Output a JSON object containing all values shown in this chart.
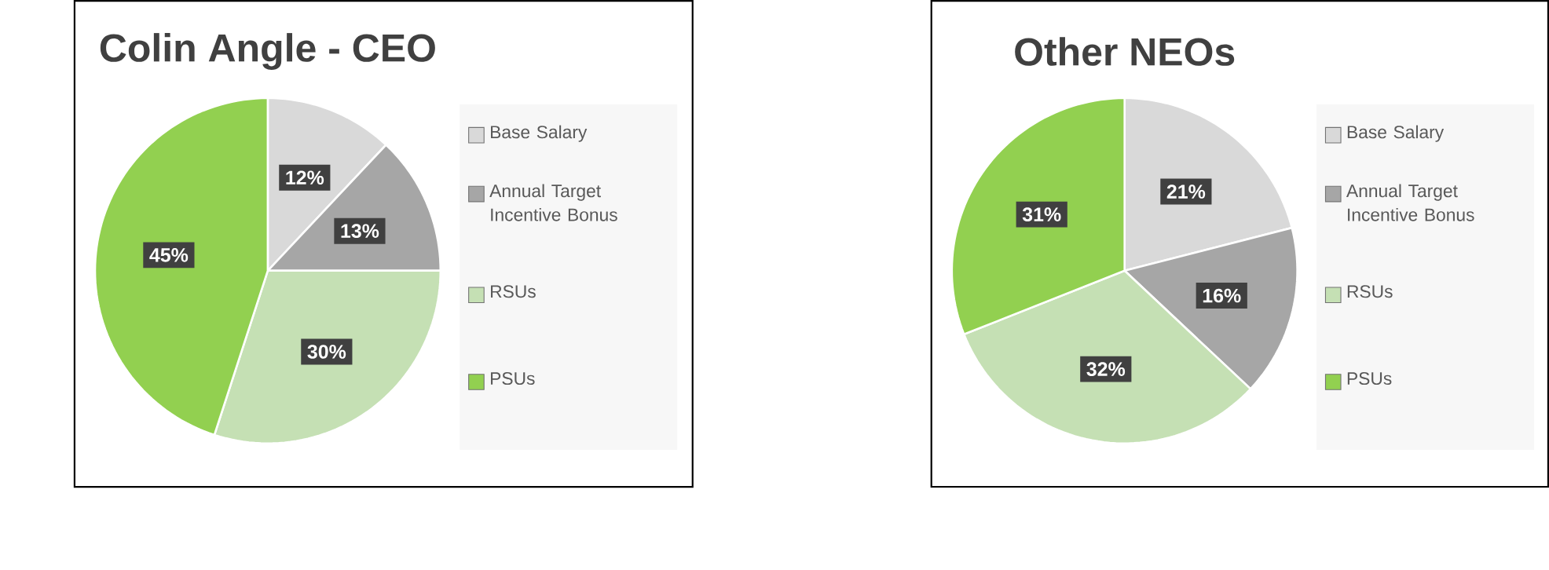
{
  "chart_data": [
    {
      "type": "pie",
      "title": "Colin Angle - CEO",
      "categories": [
        "Base Salary",
        "Annual Target Incentive Bonus",
        "RSUs",
        "PSUs"
      ],
      "values": [
        12,
        13,
        30,
        45
      ],
      "value_labels": [
        "12%",
        "13%",
        "30%",
        "45%"
      ],
      "colors": [
        "#d9d9d9",
        "#a6a6a6",
        "#c5e0b4",
        "#92d050"
      ],
      "legend": "right"
    },
    {
      "type": "pie",
      "title": "Other NEOs",
      "categories": [
        "Base Salary",
        "Annual Target Incentive Bonus",
        "RSUs",
        "PSUs"
      ],
      "values": [
        21,
        16,
        32,
        31
      ],
      "value_labels": [
        "21%",
        "16%",
        "32%",
        "31%"
      ],
      "colors": [
        "#d9d9d9",
        "#a6a6a6",
        "#c5e0b4",
        "#92d050"
      ],
      "legend": "right"
    }
  ]
}
